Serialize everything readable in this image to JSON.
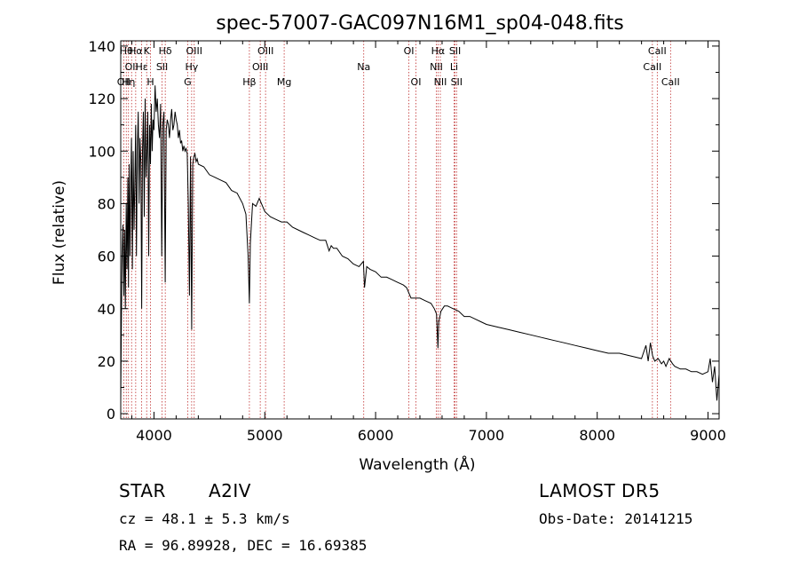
{
  "chart_data": {
    "type": "line",
    "title": "spec-57007-GAC097N16M1_sp04-048.fits",
    "xlabel": "Wavelength (Å)",
    "ylabel": "Flux (relative)",
    "xlim": [
      3700,
      9100
    ],
    "ylim": [
      -2,
      142
    ],
    "xticks": [
      4000,
      5000,
      6000,
      7000,
      8000,
      9000
    ],
    "yticks": [
      0,
      20,
      40,
      60,
      80,
      100,
      120,
      140
    ],
    "grid": false,
    "line_color": "#000000",
    "marker_color": "#c03030",
    "series": [
      {
        "x": [
          3700,
          3705,
          3712,
          3720,
          3728,
          3735,
          3742,
          3750,
          3757,
          3764,
          3770,
          3776,
          3783,
          3790,
          3797,
          3805,
          3812,
          3820,
          3828,
          3835,
          3842,
          3850,
          3858,
          3866,
          3874,
          3882,
          3889,
          3896,
          3904,
          3912,
          3920,
          3928,
          3936,
          3944,
          3952,
          3960,
          3968,
          3976,
          3984,
          3992,
          4000,
          4010,
          4020,
          4030,
          4040,
          4050,
          4060,
          4070,
          4080,
          4090,
          4101,
          4110,
          4120,
          4130,
          4140,
          4150,
          4160,
          4170,
          4180,
          4190,
          4200,
          4210,
          4220,
          4230,
          4240,
          4250,
          4260,
          4270,
          4280,
          4290,
          4300,
          4310,
          4320,
          4330,
          4340,
          4350,
          4360,
          4370,
          4380,
          4390,
          4400,
          4450,
          4500,
          4550,
          4600,
          4650,
          4700,
          4750,
          4800,
          4830,
          4850,
          4861,
          4870,
          4890,
          4920,
          4950,
          5000,
          5050,
          5100,
          5150,
          5200,
          5250,
          5300,
          5350,
          5400,
          5450,
          5500,
          5550,
          5580,
          5600,
          5620,
          5650,
          5700,
          5750,
          5800,
          5850,
          5890,
          5900,
          5920,
          5950,
          6000,
          6050,
          6100,
          6150,
          6200,
          6250,
          6280,
          6300,
          6320,
          6350,
          6400,
          6450,
          6500,
          6530,
          6550,
          6563,
          6570,
          6590,
          6620,
          6650,
          6700,
          6750,
          6800,
          6850,
          6900,
          6950,
          7000,
          7100,
          7200,
          7300,
          7400,
          7500,
          7600,
          7700,
          7800,
          7900,
          8000,
          8100,
          8200,
          8300,
          8400,
          8440,
          8460,
          8480,
          8500,
          8520,
          8550,
          8580,
          8600,
          8620,
          8650,
          8680,
          8700,
          8750,
          8800,
          8850,
          8900,
          8950,
          9000,
          9020,
          9040,
          9060,
          9080,
          9100
        ],
        "y": [
          5,
          30,
          60,
          72,
          45,
          70,
          40,
          80,
          55,
          90,
          48,
          95,
          60,
          85,
          105,
          55,
          100,
          70,
          90,
          110,
          60,
          100,
          115,
          80,
          105,
          95,
          40,
          100,
          115,
          75,
          120,
          90,
          100,
          115,
          60,
          110,
          95,
          118,
          100,
          112,
          108,
          125,
          115,
          120,
          110,
          105,
          118,
          60,
          110,
          115,
          50,
          108,
          112,
          110,
          105,
          112,
          116,
          108,
          110,
          115,
          112,
          110,
          105,
          108,
          103,
          104,
          100,
          102,
          100,
          101,
          99,
          80,
          45,
          98,
          32,
          95,
          98,
          99,
          96,
          97,
          95,
          94,
          91,
          90,
          89,
          88,
          85,
          84,
          80,
          76,
          60,
          42,
          65,
          80,
          79,
          82,
          77,
          75,
          74,
          73,
          73,
          71,
          70,
          69,
          68,
          67,
          66,
          66,
          62,
          64,
          63,
          63,
          60,
          59,
          57,
          56,
          58,
          48,
          56,
          55,
          54,
          52,
          52,
          51,
          50,
          49,
          48,
          46,
          44,
          44,
          44,
          43,
          42,
          40,
          38,
          25,
          35,
          39,
          41,
          41,
          40,
          39,
          37,
          37,
          36,
          35,
          34,
          33,
          32,
          31,
          30,
          29,
          28,
          27,
          26,
          25,
          24,
          23,
          23,
          22,
          21,
          26,
          20,
          27,
          22,
          20,
          21,
          19,
          20,
          18,
          21,
          19,
          18,
          17,
          17,
          16,
          16,
          15,
          16,
          21,
          12,
          18,
          5,
          15
        ]
      }
    ],
    "lines": [
      {
        "x": 3727,
        "label": "OII",
        "row": 2
      },
      {
        "x": 3750,
        "label": "Hθ",
        "row": 0
      },
      {
        "x": 3770,
        "label": "Hη",
        "row": 2
      },
      {
        "x": 3798,
        "label": "OII",
        "row": 1
      },
      {
        "x": 3835,
        "label": "Hα",
        "row": 0
      },
      {
        "x": 3889,
        "label": "Hε",
        "row": 1
      },
      {
        "x": 3934,
        "label": "K",
        "row": 0
      },
      {
        "x": 3969,
        "label": "H",
        "row": 2
      },
      {
        "x": 4073,
        "label": "SII",
        "row": 1
      },
      {
        "x": 4102,
        "label": "Hδ",
        "row": 0
      },
      {
        "x": 4304,
        "label": "G",
        "row": 2
      },
      {
        "x": 4340,
        "label": "Hγ",
        "row": 1
      },
      {
        "x": 4363,
        "label": "OIII",
        "row": 0
      },
      {
        "x": 4861,
        "label": "Hβ",
        "row": 2
      },
      {
        "x": 4959,
        "label": "OIII",
        "row": 1
      },
      {
        "x": 5007,
        "label": "OIII",
        "row": 0
      },
      {
        "x": 5175,
        "label": "Mg",
        "row": 2
      },
      {
        "x": 5893,
        "label": "Na",
        "row": 1
      },
      {
        "x": 6300,
        "label": "OI",
        "row": 0
      },
      {
        "x": 6364,
        "label": "OI",
        "row": 2
      },
      {
        "x": 6548,
        "label": "NII",
        "row": 1
      },
      {
        "x": 6563,
        "label": "Hα",
        "row": 0
      },
      {
        "x": 6584,
        "label": "NII",
        "row": 2
      },
      {
        "x": 6708,
        "label": "Li",
        "row": 1
      },
      {
        "x": 6717,
        "label": "SII",
        "row": 0
      },
      {
        "x": 6731,
        "label": "SII",
        "row": 2
      },
      {
        "x": 8498,
        "label": "CaII",
        "row": 1
      },
      {
        "x": 8542,
        "label": "CaII",
        "row": 0
      },
      {
        "x": 8662,
        "label": "CaII",
        "row": 2
      }
    ]
  },
  "info": {
    "class_label": "STAR",
    "subclass": "A2IV",
    "survey": "LAMOST DR5",
    "cz": "cz = 48.1 ± 5.3 km/s",
    "obs_date": "Obs-Date: 20141215",
    "coords": "RA =  96.89928, DEC =  16.69385"
  }
}
